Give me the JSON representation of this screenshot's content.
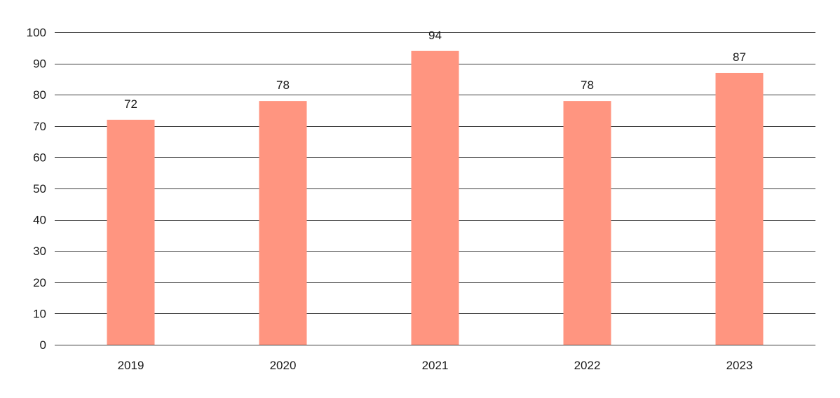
{
  "chart_data": {
    "type": "bar",
    "title": "",
    "xlabel": "",
    "ylabel": "",
    "categories": [
      "2019",
      "2020",
      "2021",
      "2022",
      "2023"
    ],
    "values": [
      72,
      78,
      94,
      78,
      87
    ],
    "data_labels": [
      "72",
      "78",
      "94",
      "78",
      "87"
    ],
    "ylim": [
      0,
      100
    ],
    "yticks": [
      0,
      10,
      20,
      30,
      40,
      50,
      60,
      70,
      80,
      90,
      100
    ],
    "ytick_labels": [
      "0",
      "10",
      "20",
      "30",
      "40",
      "50",
      "60",
      "70",
      "80",
      "90",
      "100"
    ],
    "grid": true,
    "legend": "none",
    "colors": {
      "bar": "#ff9580",
      "grid": "#3c3c3c"
    }
  }
}
